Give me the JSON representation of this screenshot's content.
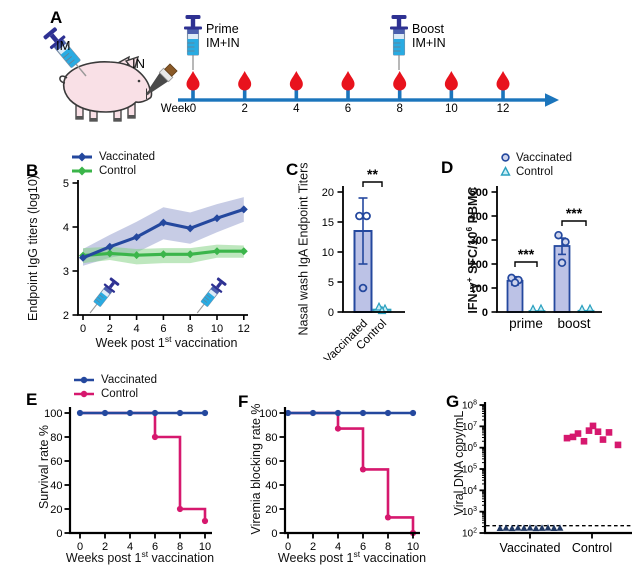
{
  "figure": {
    "background": "#ffffff",
    "colors": {
      "vaccinated_blue": "#24489e",
      "control_green": "#3bb54a",
      "vaccinated_band": "#9099cc",
      "control_band": "#7ecf7e",
      "control_magenta": "#d6186e",
      "bar_fill": "#bcc2e6",
      "control_cyan_stroke": "#2aa0bf",
      "control_cyan_fill": "#9fdcea",
      "navy_triangle": "#203864",
      "timeline_blue": "#1b75bc",
      "blood_red": "#e8131d",
      "syringe_cyan": "#29abe2",
      "syringe_navy": "#2e3192",
      "pig_pink": "#f9e0e6"
    }
  },
  "panels": {
    "A": {
      "label": "A",
      "im": "IM",
      "in": "IN",
      "prime": [
        "Prime",
        "IM+IN"
      ],
      "boost": [
        "Boost",
        "IM+IN"
      ],
      "week_word": "Week",
      "weeks": [
        "0",
        "2",
        "4",
        "6",
        "8",
        "10",
        "12"
      ]
    },
    "B": {
      "label": "B",
      "legend": [
        "Vaccinated",
        "Control"
      ],
      "ylabel": "Endpoint IgG titers (log10)",
      "xlabel": [
        "Week post 1",
        "st",
        " vaccination"
      ]
    },
    "C": {
      "label": "C",
      "ylabel": "Nasal wash IgA Endpoint Titers",
      "sig": "**"
    },
    "D": {
      "label": "D",
      "legend": [
        "Vaccinated",
        "Control"
      ],
      "ylabel": [
        "IFN-γ",
        "+",
        " SFC/10",
        "6",
        " PBMC"
      ]
    },
    "E": {
      "label": "E",
      "legend": [
        "Vaccinated",
        "Control"
      ],
      "ylabel": "Survival rate %",
      "xlabel": [
        "Weeks post 1",
        "st",
        " vaccination"
      ]
    },
    "F": {
      "label": "F",
      "ylabel": "Viremia blocking rate %",
      "xlabel": [
        "Weeks post 1",
        "st",
        " vaccination"
      ]
    },
    "G": {
      "label": "G",
      "ylabel": "Viral DNA copy/mL"
    }
  },
  "chart_data": [
    {
      "id": "B",
      "type": "line-band",
      "x": [
        0,
        2,
        4,
        6,
        8,
        10,
        12
      ],
      "xticks": [
        0,
        2,
        4,
        6,
        8,
        10,
        12
      ],
      "ylim": [
        2,
        5
      ],
      "yticks": [
        2,
        3,
        4,
        5
      ],
      "ylabel": "Endpoint IgG titers (log10)",
      "xlabel": "Week post 1st vaccination",
      "syringe_weeks": [
        0.45,
        8.45
      ],
      "series": [
        {
          "name": "Vaccinated",
          "color": "#24489e",
          "band_color": "#9099cc",
          "values": [
            3.3,
            3.55,
            3.77,
            4.1,
            3.97,
            4.2,
            4.4
          ],
          "upper": [
            3.5,
            3.82,
            4.12,
            4.45,
            4.33,
            4.52,
            4.68
          ],
          "lower": [
            3.12,
            3.3,
            3.42,
            3.72,
            3.62,
            3.88,
            4.12
          ]
        },
        {
          "name": "Control",
          "color": "#3bb54a",
          "band_color": "#7ecf7e",
          "values": [
            3.35,
            3.4,
            3.36,
            3.38,
            3.38,
            3.45,
            3.45
          ],
          "upper": [
            3.52,
            3.55,
            3.5,
            3.52,
            3.52,
            3.6,
            3.58
          ],
          "lower": [
            3.18,
            3.25,
            3.15,
            3.18,
            3.18,
            3.3,
            3.3
          ]
        }
      ]
    },
    {
      "id": "C",
      "type": "bar",
      "categories": [
        "Vaccinated",
        "Control"
      ],
      "values": [
        13.5,
        0.4
      ],
      "err_hi": [
        19,
        0
      ],
      "err_lo": [
        8,
        0
      ],
      "points": [
        [
          16,
          16,
          4
        ],
        [
          0.8,
          0.5,
          0.2
        ]
      ],
      "ylim": [
        0,
        20
      ],
      "yticks": [
        0,
        5,
        10,
        15,
        20
      ],
      "ylabel": "Nasal wash IgA Endpoint Titers",
      "sig": "**"
    },
    {
      "id": "D",
      "type": "grouped-bar",
      "groups": [
        "prime",
        "boost"
      ],
      "ylim": [
        0,
        500
      ],
      "yticks": [
        0,
        100,
        200,
        300,
        400,
        500
      ],
      "ylabel": "IFN-γ+ SFC/10^6 PBMC",
      "sig": [
        "***",
        "***"
      ],
      "series": [
        {
          "name": "Vaccinated",
          "marker": "circle",
          "color": "#24489e",
          "fill": "#bcc2e6",
          "values": [
            130,
            275
          ],
          "err_hi": [
            147,
            308
          ],
          "err_lo": [
            113,
            240
          ],
          "points": [
            [
              142,
              133,
              122
            ],
            [
              320,
              292,
              205
            ]
          ]
        },
        {
          "name": "Control",
          "marker": "triangle",
          "color": "#2aa0bf",
          "fill": "#9fdcea",
          "values": [
            4,
            5
          ],
          "err_hi": [
            0,
            0
          ],
          "err_lo": [
            0,
            0
          ],
          "points": [
            [
              4,
              6
            ],
            [
              4,
              6
            ]
          ]
        }
      ]
    },
    {
      "id": "E",
      "type": "step",
      "ylabel": "Survival rate %",
      "xlabel": "Weeks post 1st vaccination",
      "xlim": [
        0,
        10
      ],
      "xticks": [
        0,
        2,
        4,
        6,
        8,
        10
      ],
      "ylim": [
        0,
        100
      ],
      "yticks": [
        0,
        20,
        40,
        60,
        80,
        100
      ],
      "series": [
        {
          "name": "Vaccinated",
          "color": "#24489e",
          "path": [
            [
              0,
              100
            ],
            [
              10,
              100
            ]
          ],
          "markers": [
            [
              0,
              100
            ],
            [
              2,
              100
            ],
            [
              4,
              100
            ],
            [
              6,
              100
            ],
            [
              8,
              100
            ],
            [
              10,
              100
            ]
          ]
        },
        {
          "name": "Control",
          "color": "#d6186e",
          "path": [
            [
              0,
              100
            ],
            [
              6,
              100
            ],
            [
              6,
              80
            ],
            [
              8,
              80
            ],
            [
              8,
              20
            ],
            [
              10,
              20
            ],
            [
              10,
              10
            ]
          ],
          "markers": [
            [
              6,
              80
            ],
            [
              8,
              20
            ],
            [
              10,
              10
            ]
          ]
        }
      ]
    },
    {
      "id": "F",
      "type": "step",
      "ylabel": "Viremia blocking rate %",
      "xlabel": "Weeks post 1st vaccination",
      "xlim": [
        0,
        10
      ],
      "xticks": [
        0,
        2,
        4,
        6,
        8,
        10
      ],
      "ylim": [
        0,
        100
      ],
      "yticks": [
        0,
        20,
        40,
        60,
        80,
        100
      ],
      "series": [
        {
          "name": "Vaccinated",
          "color": "#24489e",
          "path": [
            [
              0,
              100
            ],
            [
              10,
              100
            ]
          ],
          "markers": [
            [
              0,
              100
            ],
            [
              2,
              100
            ],
            [
              4,
              100
            ],
            [
              6,
              100
            ],
            [
              8,
              100
            ],
            [
              10,
              100
            ]
          ]
        },
        {
          "name": "Control",
          "color": "#d6186e",
          "path": [
            [
              0,
              100
            ],
            [
              4,
              100
            ],
            [
              4,
              87
            ],
            [
              6,
              87
            ],
            [
              6,
              53
            ],
            [
              8,
              53
            ],
            [
              8,
              13
            ],
            [
              10,
              13
            ],
            [
              10,
              0
            ]
          ],
          "markers": [
            [
              4,
              87
            ],
            [
              6,
              53
            ],
            [
              8,
              13
            ],
            [
              10,
              0
            ]
          ]
        }
      ]
    },
    {
      "id": "G",
      "type": "scatter-log",
      "categories": [
        "Vaccinated",
        "Control"
      ],
      "ylabel": "Viral DNA copy/mL",
      "ylim_exp": [
        2,
        8
      ],
      "detection_limit": 220,
      "groups": [
        {
          "name": "Vaccinated",
          "marker": "triangle",
          "color": "#203864",
          "points": [
            [
              -30,
              168
            ],
            [
              -24,
              172
            ],
            [
              -18,
              165
            ],
            [
              -12,
              175
            ],
            [
              -6,
              170
            ],
            [
              0,
              174
            ],
            [
              6,
              166
            ],
            [
              12,
              171
            ],
            [
              18,
              176
            ],
            [
              24,
              169
            ],
            [
              30,
              173
            ]
          ]
        },
        {
          "name": "Control",
          "marker": "square",
          "color": "#d6186e",
          "points": [
            [
              -25,
              2800000
            ],
            [
              -19,
              3200000
            ],
            [
              -14,
              4600000
            ],
            [
              -8,
              2000000
            ],
            [
              -3,
              6300000
            ],
            [
              1,
              10500000
            ],
            [
              6,
              5600000
            ],
            [
              11,
              2400000
            ],
            [
              17,
              5200000
            ],
            [
              26,
              1350000
            ]
          ]
        }
      ]
    }
  ]
}
